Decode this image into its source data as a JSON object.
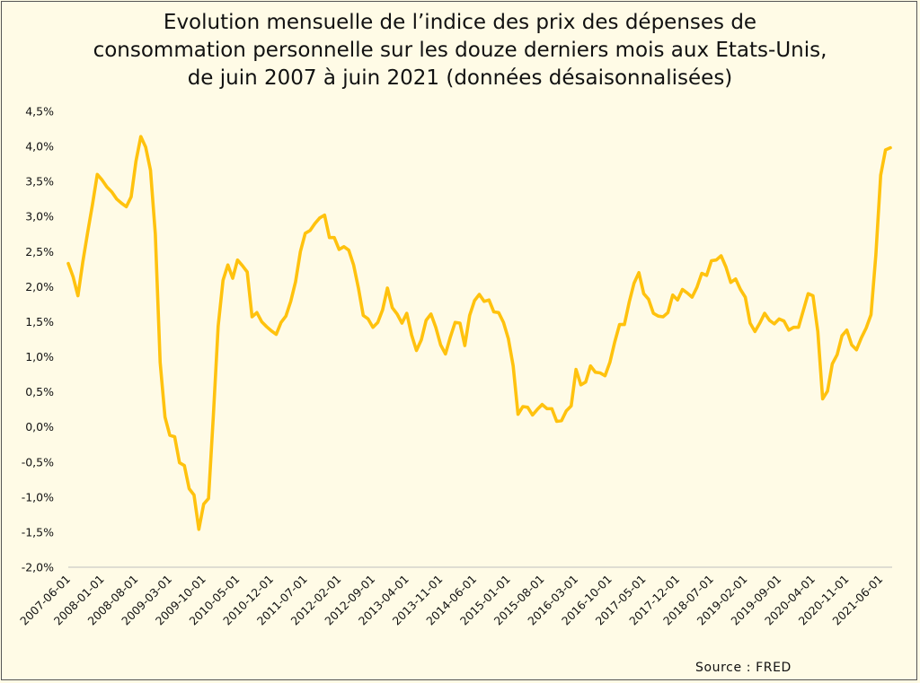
{
  "chart_data": {
    "type": "line",
    "title_lines": [
      "Evolution mensuelle de l’indice des prix des dépenses de",
      "consommation personnelle sur les douze derniers mois aux Etats-Unis,",
      "de juin 2007 à juin 2021 (données désaisonnalisées)"
    ],
    "source": "Source : FRED",
    "x_start": "2007-06-01",
    "x_end": "2021-06-01",
    "x_tick_labels": [
      "2007-06-01",
      "2008-01-01",
      "2008-08-01",
      "2009-03-01",
      "2009-10-01",
      "2010-05-01",
      "2010-12-01",
      "2011-07-01",
      "2012-02-01",
      "2012-09-01",
      "2013-04-01",
      "2013-11-01",
      "2014-06-01",
      "2015-01-01",
      "2015-08-01",
      "2016-03-01",
      "2016-10-01",
      "2017-05-01",
      "2017-12-01",
      "2018-07-01",
      "2019-02-01",
      "2019-09-01",
      "2020-04-01",
      "2020-11-01",
      "2021-06-01"
    ],
    "y_tick_labels": [
      "-2,0%",
      "-1,5%",
      "-1,0%",
      "-0,5%",
      "0,0%",
      "0,5%",
      "1,0%",
      "1,5%",
      "2,0%",
      "2,5%",
      "3,0%",
      "3,5%",
      "4,0%",
      "4,5%"
    ],
    "ylim": [
      -2.0,
      4.5
    ],
    "grid": false,
    "series_color": "#ffc20e",
    "series": [
      {
        "values": [
          2.33,
          2.14,
          1.87,
          2.35,
          2.77,
          3.17,
          3.6,
          3.52,
          3.42,
          3.35,
          3.25,
          3.19,
          3.14,
          3.28,
          3.79,
          4.14,
          3.99,
          3.66,
          2.75,
          0.92,
          0.14,
          -0.12,
          -0.14,
          -0.51,
          -0.55,
          -0.88,
          -0.97,
          -1.46,
          -1.1,
          -1.02,
          0.16,
          1.44,
          2.09,
          2.31,
          2.12,
          2.38,
          2.3,
          2.21,
          1.57,
          1.63,
          1.5,
          1.43,
          1.37,
          1.32,
          1.49,
          1.58,
          1.79,
          2.07,
          2.5,
          2.76,
          2.8,
          2.9,
          2.98,
          3.02,
          2.7,
          2.7,
          2.53,
          2.57,
          2.52,
          2.31,
          1.98,
          1.59,
          1.54,
          1.42,
          1.49,
          1.67,
          1.98,
          1.7,
          1.61,
          1.48,
          1.62,
          1.31,
          1.09,
          1.24,
          1.52,
          1.61,
          1.42,
          1.17,
          1.04,
          1.28,
          1.49,
          1.48,
          1.16,
          1.59,
          1.8,
          1.89,
          1.79,
          1.81,
          1.64,
          1.63,
          1.49,
          1.26,
          0.87,
          0.18,
          0.29,
          0.28,
          0.17,
          0.25,
          0.32,
          0.26,
          0.26,
          0.08,
          0.09,
          0.23,
          0.3,
          0.82,
          0.6,
          0.64,
          0.87,
          0.78,
          0.77,
          0.73,
          0.92,
          1.21,
          1.46,
          1.46,
          1.78,
          2.05,
          2.2,
          1.9,
          1.82,
          1.62,
          1.58,
          1.57,
          1.63,
          1.88,
          1.81,
          1.96,
          1.91,
          1.85,
          1.99,
          2.19,
          2.16,
          2.37,
          2.38,
          2.44,
          2.28,
          2.06,
          2.11,
          1.96,
          1.85,
          1.48,
          1.36,
          1.48,
          1.62,
          1.52,
          1.47,
          1.54,
          1.51,
          1.38,
          1.42,
          1.42,
          1.66,
          1.9,
          1.87,
          1.36,
          0.4,
          0.51,
          0.9,
          1.03,
          1.3,
          1.38,
          1.17,
          1.1,
          1.27,
          1.41,
          1.6,
          2.45,
          3.59,
          3.95,
          3.98
        ]
      }
    ]
  }
}
